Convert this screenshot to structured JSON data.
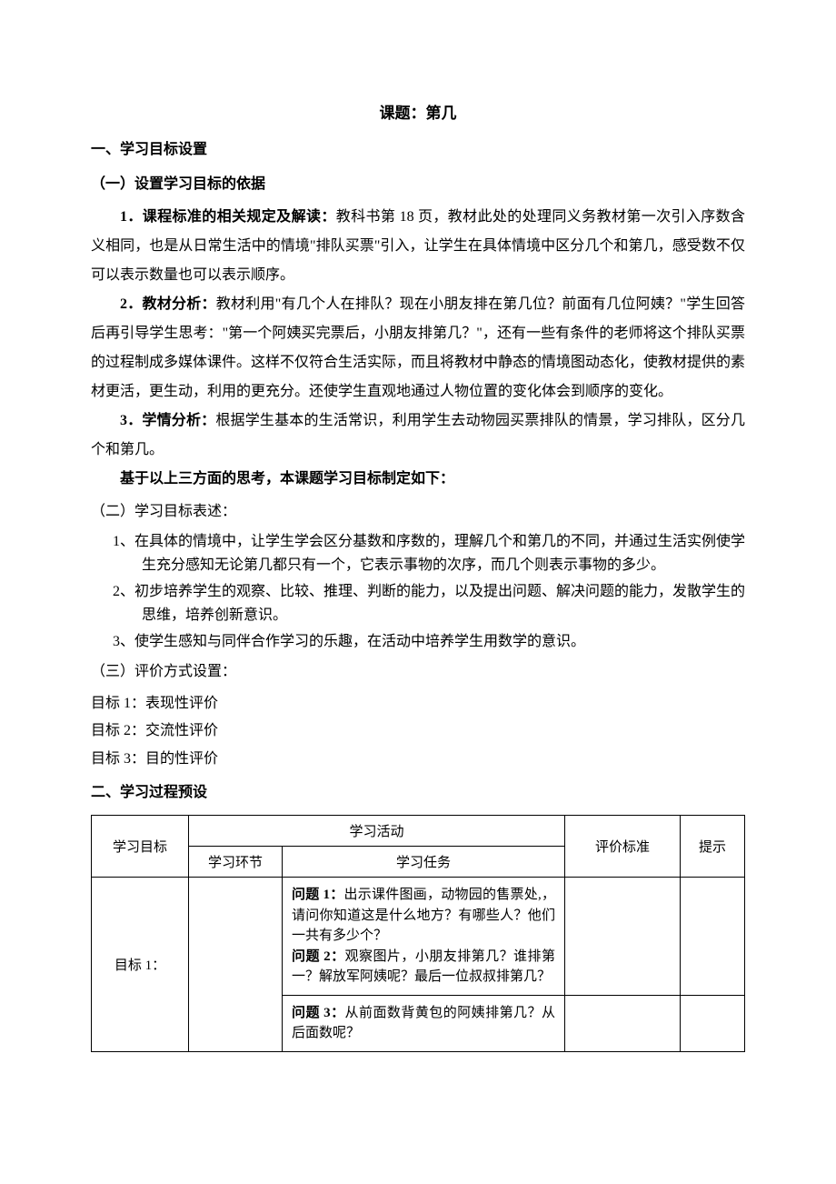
{
  "title": "课题：第几",
  "sec1": {
    "heading": "一、学习目标设置",
    "sub1": {
      "heading": "（一）设置学习目标的依据",
      "item1_label": "1．课程标准的相关规定及解读：",
      "item1_body": "教科书第 18 页，教材此处的处理同义务教材第一次引入序数含义相同，也是从日常生活中的情境\"排队买票\"引入，让学生在具体情境中区分几个和第几，感受数不仅可以表示数量也可以表示顺序。",
      "item2_label": "2．教材分析：",
      "item2_body": "教材利用\"有几个人在排队？现在小朋友排在第几位？前面有几位阿姨？\"学生回答后再引导学生思考：\"第一个阿姨买完票后，小朋友排第几？\"，还有一些有条件的老师将这个排队买票的过程制成多媒体课件。这样不仅符合生活实际，而且将教材中静态的情境图动态化，使教材提供的素材更活，更生动，利用的更充分。还使学生直观地通过人物位置的变化体会到顺序的变化。",
      "item3_label": "3．学情分析：",
      "item3_body": "根据学生基本的生活常识，利用学生去动物园买票排队的情景，学习排队，区分几个和第几。",
      "conclude": "基于以上三方面的思考，本课题学习目标制定如下："
    },
    "sub2": {
      "heading": "（二）学习目标表述：",
      "items": [
        "1、在具体的情境中，让学生学会区分基数和序数的，理解几个和第几的不同，并通过生活实例使学生充分感知无论第几都只有一个，它表示事物的次序，而几个则表示事物的多少。",
        "2、初步培养学生的观察、比较、推理、判断的能力，以及提出问题、解决问题的能力，发散学生的思维，培养创新意识。",
        "3、使学生感知与同伴合作学习的乐趣，在活动中培养学生用数学的意识。"
      ]
    },
    "sub3": {
      "heading": "（三）评价方式设置：",
      "lines": [
        "目标 1：表现性评价",
        "目标 2：交流性评价",
        "目标 3：目的性评价"
      ]
    }
  },
  "sec2": {
    "heading": "二、学习过程预设",
    "table": {
      "headers": {
        "goal": "学习目标",
        "activity": "学习活动",
        "phase": "学习环节",
        "task": "学习任务",
        "eval": "评价标准",
        "hint": "提示"
      },
      "row_goal": "目标 1：",
      "q1_label": "问题 1：",
      "q1": "出示课件图画，动物园的售票处,，请问你知道这是什么地方？有哪些人？他们一共有多少个？",
      "q2_label": "问题 2：",
      "q2": "观察图片，小朋友排第几？谁排第一？解放军阿姨呢？最后一位叔叔排第几？",
      "q3_label": "问题 3：",
      "q3": "从前面数背黄包的阿姨排第几？从后面数呢？"
    }
  }
}
